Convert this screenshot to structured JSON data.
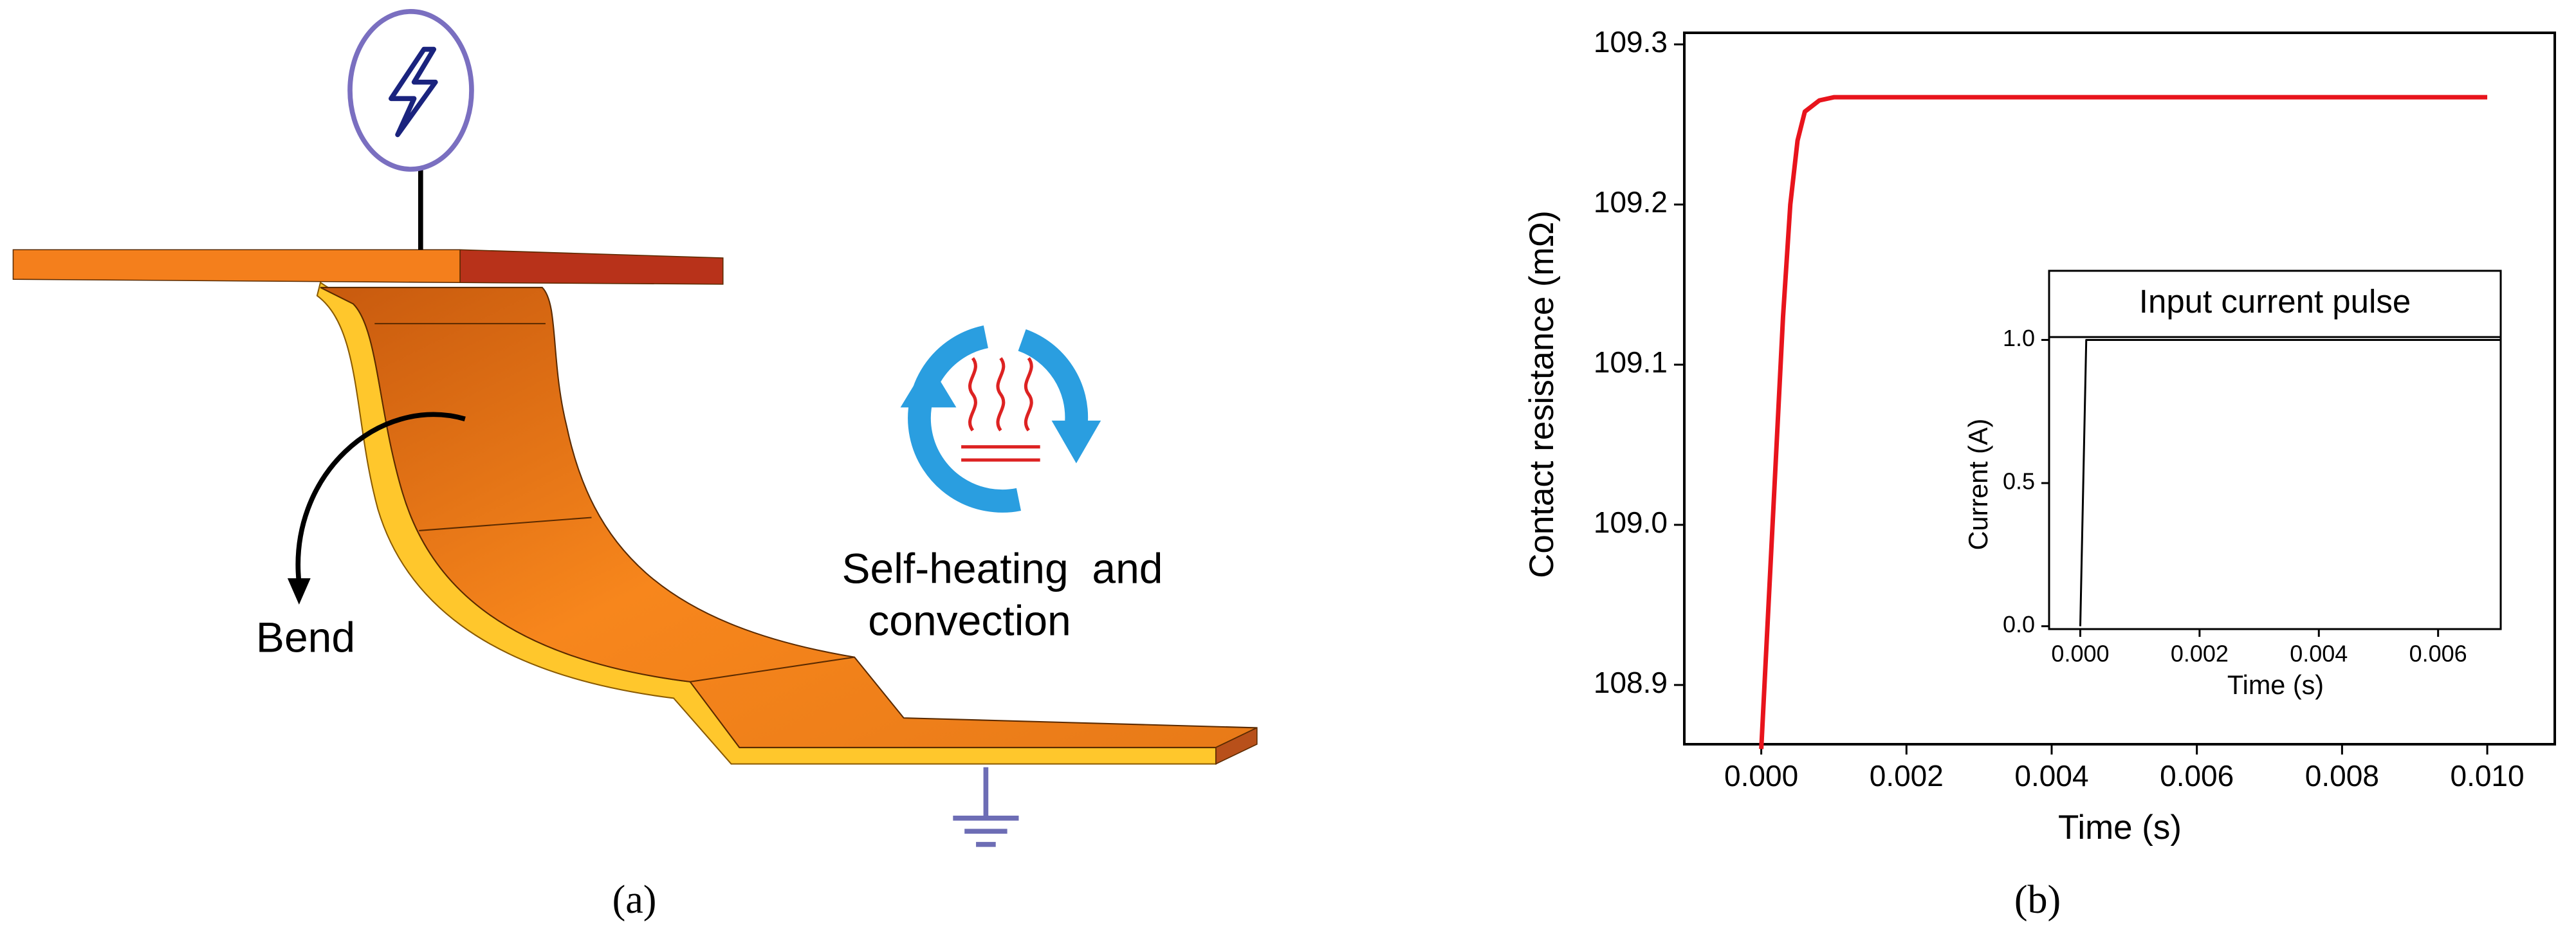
{
  "diagram": {
    "labels": {
      "bend": "Bend",
      "heating": "Self-heating  and",
      "convection": "convection"
    }
  },
  "panel_labels": [
    "(a)",
    "(b)"
  ],
  "chart_data": [
    {
      "type": "line",
      "x_label": "Time (s)",
      "y_label": "Contact resistance (mΩ)",
      "x": [
        0,
        0.0001,
        0.0002,
        0.0003,
        0.0004,
        0.0005,
        0.0006,
        0.0008,
        0.001,
        0.01
      ],
      "values": [
        108.86,
        108.95,
        109.04,
        109.13,
        109.2,
        109.24,
        109.258,
        109.265,
        109.267,
        109.267
      ],
      "color": "#e8141c",
      "xlim": [
        -0.00106,
        0.01093
      ],
      "ylim": [
        108.863,
        109.3
      ],
      "xticks": [
        {
          "value": 0,
          "label": "0.000"
        },
        {
          "value": 0.002,
          "label": "0.002"
        },
        {
          "value": 0.004,
          "label": "0.004"
        },
        {
          "value": 0.006,
          "label": "0.006"
        },
        {
          "value": 0.008,
          "label": "0.008"
        },
        {
          "value": 0.01,
          "label": "0.010"
        }
      ],
      "yticks": [
        {
          "value": 108.9,
          "label": "108.9"
        },
        {
          "value": 109,
          "label": "109.0"
        },
        {
          "value": 109.1,
          "label": "109.1"
        },
        {
          "value": 109.2,
          "label": "109.2"
        },
        {
          "value": 109.3,
          "label": "109.3"
        }
      ]
    },
    {
      "type": "line",
      "title": "Input current pulse",
      "x_label": "Time (s)",
      "y_label": "Current (A)",
      "x": [
        0,
        0.0001,
        0.00705
      ],
      "values": [
        0,
        1,
        1
      ],
      "color": "#000000",
      "xlim": [
        -0.000523,
        0.00705
      ],
      "ylim": [
        -0.01,
        1.01
      ],
      "xticks": [
        {
          "value": 0,
          "label": "0.000"
        },
        {
          "value": 0.002,
          "label": "0.002"
        },
        {
          "value": 0.004,
          "label": "0.004"
        },
        {
          "value": 0.006,
          "label": "0.006"
        }
      ],
      "yticks": [
        {
          "value": 0,
          "label": "0.0"
        },
        {
          "value": 0.5,
          "label": "0.5"
        },
        {
          "value": 1,
          "label": "1.0"
        }
      ]
    }
  ]
}
